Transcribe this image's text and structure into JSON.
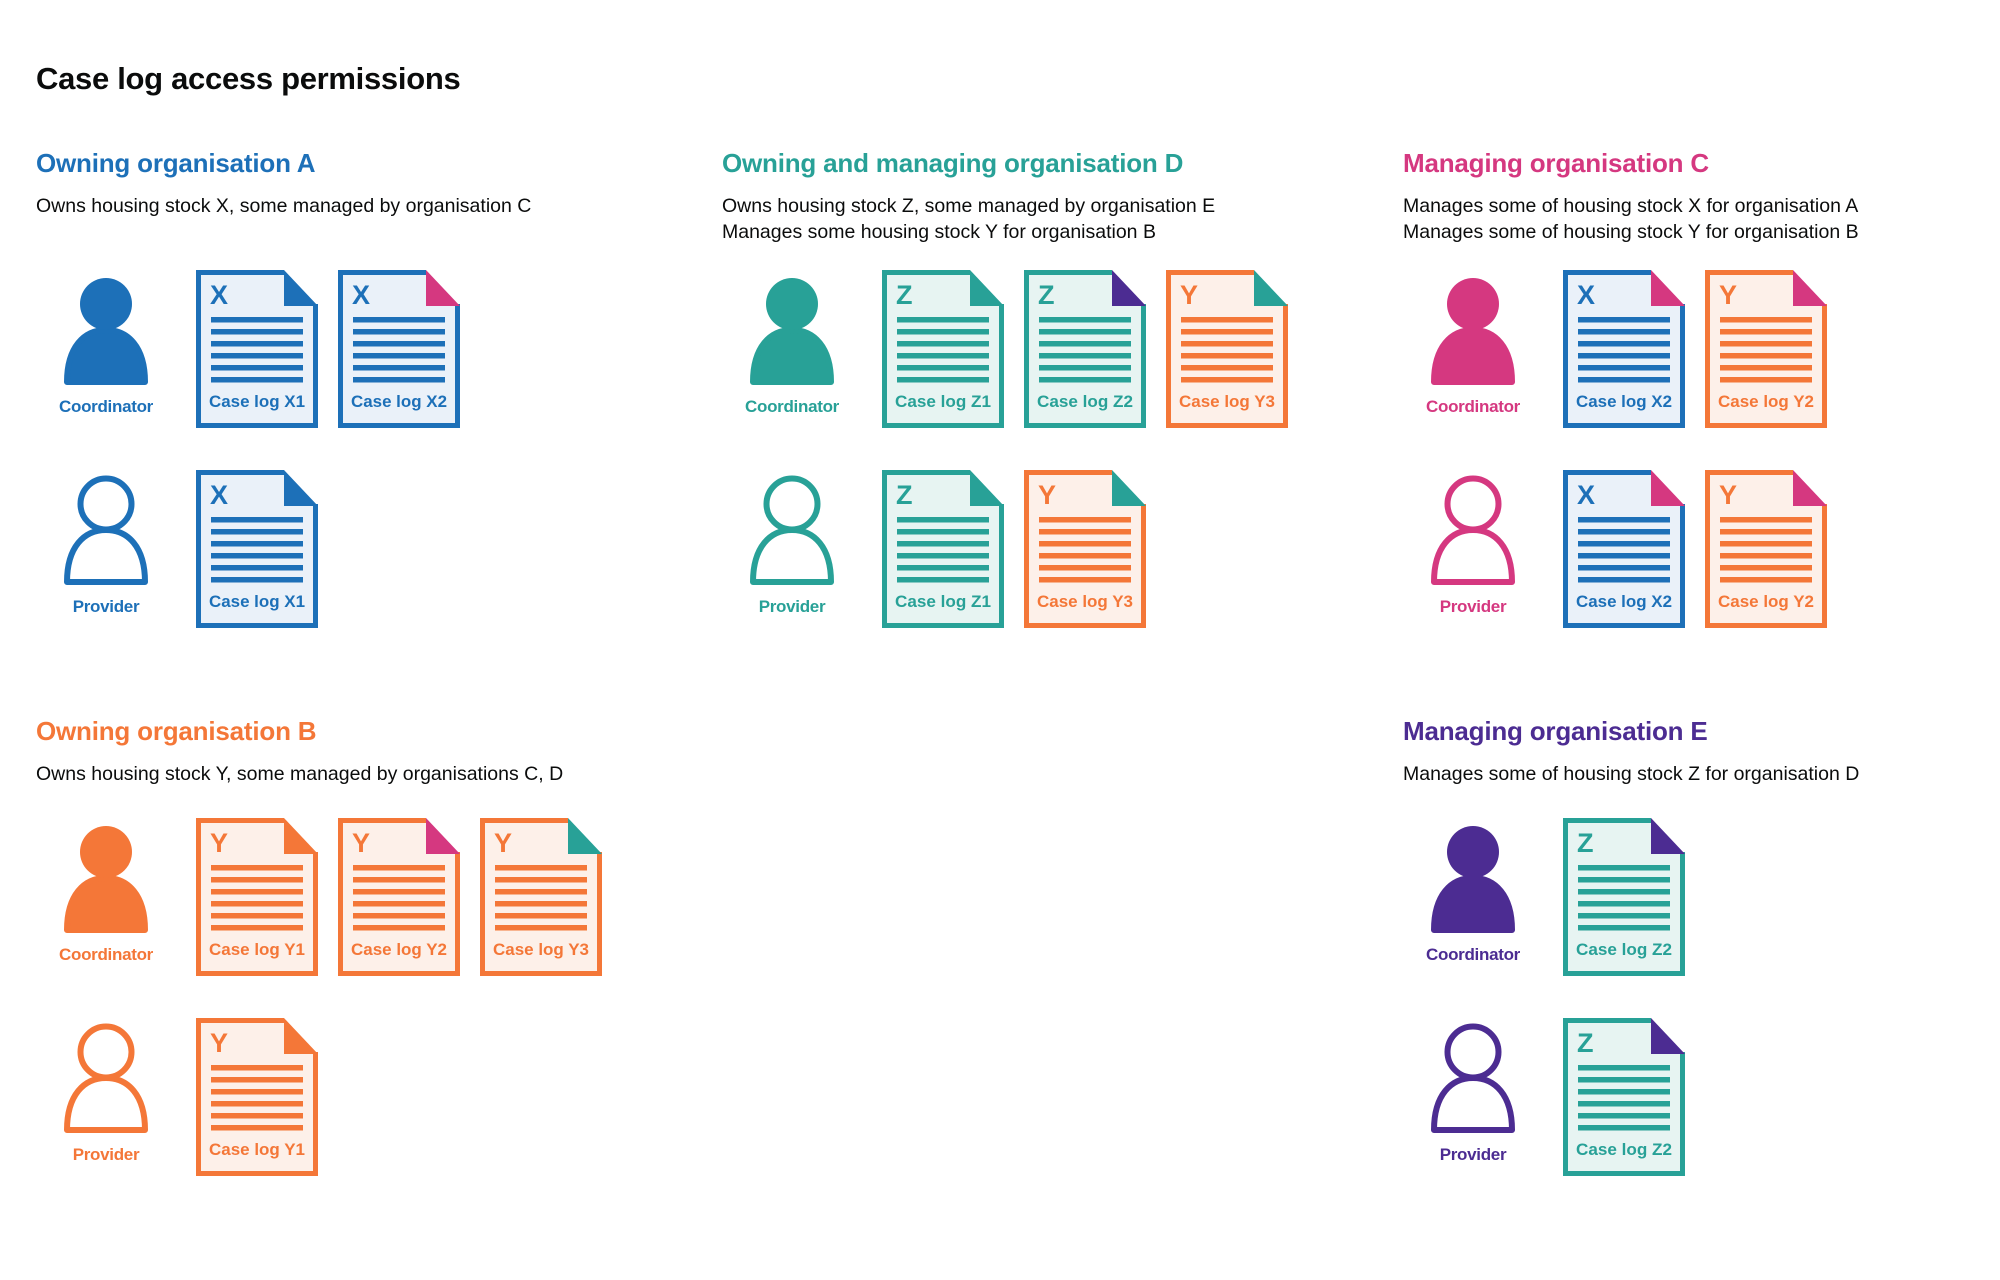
{
  "title": "Case log access permissions",
  "palette": {
    "text": "#0b0c0c",
    "background": "#ffffff",
    "blue": "#1d70b8",
    "teal": "#28a197",
    "pink": "#d53880",
    "orange": "#f47738",
    "purple": "#4c2c92",
    "blue_tint": "#eaf1f9",
    "teal_tint": "#e7f4f2",
    "orange_tint": "#fdf0e9"
  },
  "sections": [
    {
      "id": "org-a",
      "title": "Owning organisation A",
      "color": "blue",
      "description": [
        "Owns housing stock X, some managed by organisation C"
      ],
      "rows": [
        {
          "role": "Coordinator",
          "person_style": "filled",
          "docs": [
            {
              "label": "Case log X1",
              "letter": "X",
              "doc_color": "blue",
              "fold_color": "blue"
            },
            {
              "label": "Case log X2",
              "letter": "X",
              "doc_color": "blue",
              "fold_color": "pink"
            }
          ]
        },
        {
          "role": "Provider",
          "person_style": "outline",
          "docs": [
            {
              "label": "Case log X1",
              "letter": "X",
              "doc_color": "blue",
              "fold_color": "blue"
            }
          ]
        }
      ]
    },
    {
      "id": "org-d",
      "title": "Owning and managing organisation D",
      "color": "teal",
      "description": [
        "Owns housing stock Z, some managed by organisation E",
        "Manages some housing stock Y for organisation B"
      ],
      "rows": [
        {
          "role": "Coordinator",
          "person_style": "filled",
          "docs": [
            {
              "label": "Case log Z1",
              "letter": "Z",
              "doc_color": "teal",
              "fold_color": "teal"
            },
            {
              "label": "Case log Z2",
              "letter": "Z",
              "doc_color": "teal",
              "fold_color": "purple"
            },
            {
              "label": "Case log Y3",
              "letter": "Y",
              "doc_color": "orange",
              "fold_color": "teal"
            }
          ]
        },
        {
          "role": "Provider",
          "person_style": "outline",
          "docs": [
            {
              "label": "Case log Z1",
              "letter": "Z",
              "doc_color": "teal",
              "fold_color": "teal"
            },
            {
              "label": "Case log Y3",
              "letter": "Y",
              "doc_color": "orange",
              "fold_color": "teal"
            }
          ]
        }
      ]
    },
    {
      "id": "org-c",
      "title": "Managing organisation C",
      "color": "pink",
      "description": [
        "Manages some of housing stock X for organisation A",
        "Manages some of housing stock Y for organisation B"
      ],
      "rows": [
        {
          "role": "Coordinator",
          "person_style": "filled",
          "docs": [
            {
              "label": "Case log X2",
              "letter": "X",
              "doc_color": "blue",
              "fold_color": "pink"
            },
            {
              "label": "Case log Y2",
              "letter": "Y",
              "doc_color": "orange",
              "fold_color": "pink"
            }
          ]
        },
        {
          "role": "Provider",
          "person_style": "outline",
          "docs": [
            {
              "label": "Case log X2",
              "letter": "X",
              "doc_color": "blue",
              "fold_color": "pink"
            },
            {
              "label": "Case log Y2",
              "letter": "Y",
              "doc_color": "orange",
              "fold_color": "pink"
            }
          ]
        }
      ]
    },
    {
      "id": "org-b",
      "title": "Owning organisation B",
      "color": "orange",
      "description": [
        "Owns housing stock Y, some managed by organisations C, D"
      ],
      "rows": [
        {
          "role": "Coordinator",
          "person_style": "filled",
          "docs": [
            {
              "label": "Case log Y1",
              "letter": "Y",
              "doc_color": "orange",
              "fold_color": "orange"
            },
            {
              "label": "Case log Y2",
              "letter": "Y",
              "doc_color": "orange",
              "fold_color": "pink"
            },
            {
              "label": "Case log Y3",
              "letter": "Y",
              "doc_color": "orange",
              "fold_color": "teal"
            }
          ]
        },
        {
          "role": "Provider",
          "person_style": "outline",
          "docs": [
            {
              "label": "Case log Y1",
              "letter": "Y",
              "doc_color": "orange",
              "fold_color": "orange"
            }
          ]
        }
      ]
    },
    {
      "id": "org-e",
      "title": "Managing organisation E",
      "color": "purple",
      "description": [
        "Manages some of housing stock Z for organisation D"
      ],
      "rows": [
        {
          "role": "Coordinator",
          "person_style": "filled",
          "docs": [
            {
              "label": "Case log Z2",
              "letter": "Z",
              "doc_color": "teal",
              "fold_color": "purple"
            }
          ]
        },
        {
          "role": "Provider",
          "person_style": "outline",
          "docs": [
            {
              "label": "Case log Z2",
              "letter": "Z",
              "doc_color": "teal",
              "fold_color": "purple"
            }
          ]
        }
      ]
    }
  ]
}
